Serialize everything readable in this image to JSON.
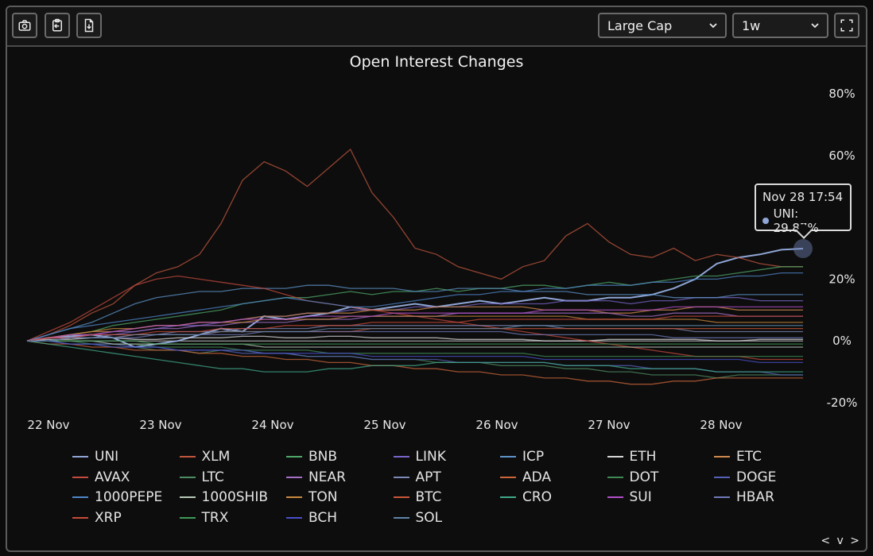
{
  "toolbar": {
    "cap_select": "Large Cap",
    "range_select": "1w"
  },
  "chart_data": {
    "type": "line",
    "title": "Open Interest Changes",
    "x_ticks": [
      "22 Nov",
      "23 Nov",
      "24 Nov",
      "25 Nov",
      "26 Nov",
      "27 Nov",
      "28 Nov"
    ],
    "y_ticks": [
      "80%",
      "60%",
      "20%",
      "0%",
      "-20%"
    ],
    "ylim": [
      -20,
      80
    ],
    "grid": false,
    "legend_position": "bottom",
    "series": [
      {
        "name": "UNI",
        "color": "#8fa6d6",
        "values": [
          0,
          1,
          1.5,
          2,
          1,
          -2,
          -1,
          0,
          2,
          4,
          3,
          8,
          7,
          8,
          9,
          11,
          10,
          11,
          12,
          11,
          12,
          13,
          12,
          13,
          14,
          13,
          13,
          14,
          14,
          15,
          17,
          20,
          25,
          27,
          28,
          29.5,
          29.87
        ]
      },
      {
        "name": "XLM",
        "color": "#c0573d",
        "values": [
          0,
          2,
          5,
          9,
          12,
          18,
          22,
          24,
          28,
          38,
          52,
          58,
          55,
          50,
          56,
          62,
          48,
          40,
          30,
          28,
          24,
          22,
          20,
          24,
          26,
          34,
          38,
          32,
          28,
          27,
          30,
          26,
          28,
          27,
          25,
          24,
          24
        ]
      },
      {
        "name": "BNB",
        "color": "#4fa86a",
        "values": [
          0,
          1,
          2,
          3,
          5,
          6,
          7,
          8,
          9,
          10,
          12,
          13,
          14,
          14,
          15,
          16,
          15,
          16,
          16,
          17,
          16,
          17,
          17,
          18,
          18,
          17,
          18,
          19,
          18,
          19,
          20,
          21,
          21,
          22,
          23,
          24,
          24
        ]
      },
      {
        "name": "LINK",
        "color": "#7a66c9",
        "values": [
          0,
          1,
          1,
          2,
          2,
          3,
          4,
          5,
          5,
          6,
          7,
          8,
          8,
          9,
          9,
          10,
          10,
          10,
          11,
          11,
          11,
          12,
          12,
          12,
          12,
          13,
          13,
          13,
          12,
          13,
          13,
          14,
          14,
          14,
          13,
          13,
          13
        ]
      },
      {
        "name": "ICP",
        "color": "#5e93c9",
        "values": [
          0,
          2,
          4,
          6,
          9,
          12,
          14,
          15,
          16,
          16,
          17,
          17,
          17,
          18,
          18,
          17,
          17,
          17,
          16,
          16,
          17,
          17,
          17,
          16,
          16,
          16,
          15,
          15,
          15,
          15,
          14,
          14,
          14,
          15,
          15,
          15,
          15
        ]
      },
      {
        "name": "ETH",
        "color": "#d8d8d8",
        "values": [
          0,
          0.5,
          0.5,
          1,
          1,
          0.5,
          0.5,
          1,
          1,
          1,
          1.5,
          1.5,
          1,
          1,
          1.5,
          1.5,
          1,
          1,
          1,
          1,
          0.5,
          0.5,
          0.5,
          0.5,
          0,
          0,
          0,
          0.5,
          0.5,
          0.5,
          0.5,
          0.5,
          0,
          0,
          0.5,
          0.5,
          0.5
        ]
      },
      {
        "name": "ETC",
        "color": "#d08a4d",
        "values": [
          0,
          1,
          2,
          3,
          3,
          4,
          5,
          5,
          6,
          6,
          7,
          8,
          8,
          9,
          9,
          9,
          10,
          10,
          10,
          11,
          11,
          11,
          11,
          11,
          10,
          10,
          10,
          9,
          9,
          10,
          10,
          11,
          11,
          10,
          10,
          10,
          10
        ]
      },
      {
        "name": "AVAX",
        "color": "#c44a3e",
        "values": [
          0,
          3,
          6,
          10,
          14,
          18,
          20,
          21,
          20,
          19,
          18,
          17,
          15,
          13,
          12,
          11,
          10,
          9,
          8,
          7,
          6,
          5,
          4,
          3,
          2,
          1,
          0,
          -1,
          -2,
          -3,
          -4,
          -5,
          -5,
          -5,
          -6,
          -6,
          -6
        ]
      },
      {
        "name": "LTC",
        "color": "#4e8c63",
        "values": [
          0,
          0,
          -1,
          -1,
          -2,
          -2,
          -3,
          -3,
          -4,
          -3,
          -3,
          -4,
          -4,
          -5,
          -5,
          -5,
          -6,
          -6,
          -6,
          -7,
          -7,
          -7,
          -8,
          -8,
          -8,
          -9,
          -9,
          -10,
          -10,
          -11,
          -11,
          -11,
          -12,
          -11,
          -11,
          -11,
          -11
        ]
      },
      {
        "name": "NEAR",
        "color": "#a46fc9",
        "values": [
          0,
          1,
          1,
          2,
          3,
          3,
          4,
          4,
          5,
          5,
          6,
          6,
          6,
          7,
          7,
          7,
          8,
          8,
          8,
          8,
          9,
          9,
          9,
          9,
          9,
          9,
          9,
          9,
          8,
          8,
          9,
          9,
          9,
          8,
          8,
          8,
          8
        ]
      },
      {
        "name": "APT",
        "color": "#7d8ab8",
        "values": [
          0,
          0,
          1,
          1,
          2,
          2,
          2,
          3,
          3,
          3,
          4,
          4,
          4,
          4,
          5,
          5,
          5,
          5,
          5,
          5,
          5,
          5,
          5,
          5,
          5,
          4,
          4,
          4,
          4,
          4,
          4,
          3,
          3,
          3,
          3,
          3,
          3
        ]
      },
      {
        "name": "ADA",
        "color": "#c9663a",
        "values": [
          0,
          -1,
          -1,
          -2,
          -2,
          -3,
          -3,
          -3,
          -4,
          -4,
          -5,
          -5,
          -6,
          -6,
          -7,
          -7,
          -8,
          -8,
          -9,
          -9,
          -10,
          -10,
          -11,
          -11,
          -12,
          -12,
          -13,
          -13,
          -14,
          -14,
          -13,
          -13,
          -12,
          -12,
          -12,
          -12,
          -12
        ]
      },
      {
        "name": "DOT",
        "color": "#3f8a55",
        "values": [
          0,
          0,
          0,
          -1,
          -1,
          -1,
          -2,
          -2,
          -2,
          -2,
          -3,
          -3,
          -3,
          -3,
          -4,
          -4,
          -4,
          -4,
          -4,
          -4,
          -4,
          -4,
          -4,
          -4,
          -5,
          -5,
          -5,
          -5,
          -5,
          -5,
          -5,
          -5,
          -5,
          -5,
          -5,
          -5,
          -5
        ]
      },
      {
        "name": "DOGE",
        "color": "#5561b8",
        "values": [
          0,
          0,
          -1,
          -1,
          -1,
          -2,
          -2,
          -3,
          -3,
          -3,
          -4,
          -4,
          -4,
          -5,
          -5,
          -5,
          -6,
          -6,
          -6,
          -6,
          -7,
          -7,
          -7,
          -7,
          -7,
          -8,
          -8,
          -8,
          -8,
          -9,
          -9,
          -9,
          -10,
          -10,
          -10,
          -11,
          -11
        ]
      },
      {
        "name": "1000PEPE",
        "color": "#4f86c9",
        "values": [
          0,
          2,
          4,
          5,
          6,
          7,
          8,
          9,
          10,
          11,
          12,
          13,
          14,
          13,
          12,
          11,
          11,
          12,
          13,
          14,
          15,
          15,
          16,
          16,
          17,
          17,
          18,
          18,
          18,
          19,
          19,
          20,
          20,
          21,
          21,
          22,
          22
        ]
      },
      {
        "name": "1000SHIB",
        "color": "#b8c8b8",
        "values": [
          0,
          0,
          0,
          0,
          -1,
          -1,
          -1,
          -1,
          -1,
          -1,
          -1,
          -2,
          -2,
          -2,
          -2,
          -2,
          -2,
          -2,
          -2,
          -2,
          -2,
          -2,
          -2,
          -2,
          -2,
          -2,
          -2,
          -2,
          -2,
          -2,
          -2,
          -2,
          -2,
          -2,
          -2,
          -2,
          -2
        ]
      },
      {
        "name": "TON",
        "color": "#c98a3d",
        "values": [
          0,
          1,
          2,
          3,
          4,
          4,
          5,
          5,
          6,
          6,
          6,
          7,
          7,
          7,
          7,
          8,
          8,
          8,
          8,
          8,
          8,
          8,
          8,
          8,
          8,
          8,
          7,
          7,
          7,
          7,
          7,
          7,
          6,
          6,
          6,
          6,
          6
        ]
      },
      {
        "name": "BTC",
        "color": "#c9573a",
        "values": [
          0,
          0,
          1,
          1,
          1,
          2,
          2,
          2,
          2,
          3,
          3,
          3,
          3,
          3,
          3,
          3,
          4,
          4,
          4,
          4,
          4,
          4,
          4,
          4,
          4,
          4,
          4,
          4,
          4,
          4,
          4,
          4,
          4,
          4,
          4,
          4,
          4
        ]
      },
      {
        "name": "CRO",
        "color": "#3fa88a",
        "values": [
          0,
          -1,
          -2,
          -3,
          -4,
          -5,
          -6,
          -7,
          -8,
          -9,
          -9,
          -10,
          -10,
          -10,
          -9,
          -9,
          -8,
          -8,
          -8,
          -7,
          -7,
          -7,
          -7,
          -7,
          -7,
          -8,
          -8,
          -8,
          -9,
          -9,
          -9,
          -9,
          -10,
          -10,
          -10,
          -10,
          -10
        ]
      },
      {
        "name": "SUI",
        "color": "#b34fc9",
        "values": [
          0,
          1,
          2,
          2,
          3,
          4,
          5,
          5,
          6,
          6,
          7,
          7,
          7,
          8,
          8,
          8,
          8,
          9,
          9,
          9,
          9,
          9,
          9,
          9,
          10,
          10,
          10,
          10,
          10,
          10,
          11,
          11,
          11,
          11,
          11,
          11,
          11
        ]
      },
      {
        "name": "HBAR",
        "color": "#6f7ab8",
        "values": [
          0,
          0,
          1,
          1,
          1,
          1,
          2,
          2,
          2,
          2,
          2,
          3,
          3,
          3,
          3,
          3,
          3,
          3,
          3,
          3,
          3,
          3,
          3,
          2,
          2,
          2,
          2,
          2,
          2,
          2,
          1,
          1,
          1,
          1,
          1,
          1,
          1
        ]
      },
      {
        "name": "XRP",
        "color": "#c94a3a",
        "values": [
          0,
          1,
          1,
          2,
          2,
          2,
          3,
          3,
          3,
          4,
          4,
          4,
          5,
          5,
          5,
          5,
          6,
          6,
          6,
          6,
          6,
          7,
          7,
          7,
          7,
          7,
          7,
          7,
          7,
          7,
          8,
          8,
          8,
          8,
          8,
          8,
          8
        ]
      },
      {
        "name": "TRX",
        "color": "#3f9a55",
        "values": [
          0,
          0,
          0,
          0,
          0,
          0,
          -1,
          -1,
          -1,
          -1,
          -1,
          -1,
          -1,
          -1,
          -1,
          -1,
          -1,
          -1,
          -1,
          -1,
          -1,
          -1,
          -1,
          -1,
          -1,
          -1,
          -1,
          -1,
          -1,
          -1,
          -1,
          -1,
          -1,
          -1,
          -1,
          -1,
          -1
        ]
      },
      {
        "name": "BCH",
        "color": "#4a4fc9",
        "values": [
          0,
          0,
          -1,
          -1,
          -2,
          -2,
          -2,
          -3,
          -3,
          -3,
          -3,
          -4,
          -4,
          -4,
          -4,
          -4,
          -5,
          -5,
          -5,
          -5,
          -5,
          -5,
          -5,
          -5,
          -6,
          -6,
          -6,
          -6,
          -6,
          -6,
          -6,
          -6,
          -6,
          -6,
          -7,
          -7,
          -7
        ]
      },
      {
        "name": "SOL",
        "color": "#5e86a8",
        "values": [
          0,
          0,
          1,
          1,
          1,
          2,
          2,
          2,
          2,
          3,
          3,
          3,
          3,
          3,
          4,
          4,
          4,
          4,
          4,
          4,
          4,
          4,
          4,
          5,
          5,
          5,
          5,
          5,
          5,
          5,
          5,
          5,
          5,
          5,
          5,
          5,
          5
        ]
      }
    ]
  },
  "tooltip": {
    "time": "Nov 28 17:54",
    "label": "UNI: 29.87%",
    "color": "#8fa6d6"
  },
  "pager": "< v >"
}
